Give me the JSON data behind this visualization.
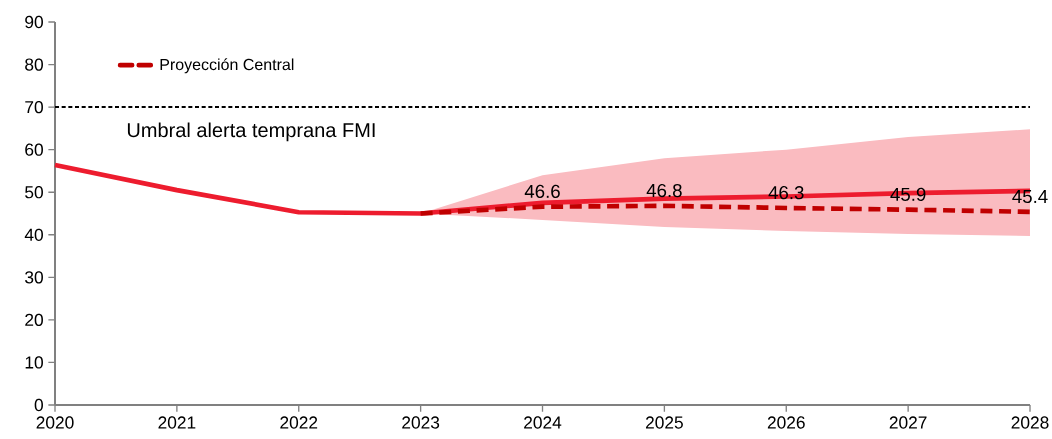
{
  "chart_data": {
    "type": "line",
    "xlim": [
      2020,
      2028
    ],
    "xticks": [
      2020,
      2021,
      2022,
      2023,
      2024,
      2025,
      2026,
      2027,
      2028
    ],
    "ylim": [
      0,
      90
    ],
    "yticks": [
      0,
      10,
      20,
      30,
      40,
      50,
      60,
      70,
      80,
      90
    ],
    "grid": false,
    "legend": "top left",
    "marker": "none",
    "ref_lines": [
      {
        "axis": "y",
        "value": 70,
        "label": "Umbral alerta temprana FMI",
        "color": "#000000",
        "line_style": "dashed"
      }
    ],
    "series": [
      {
        "color": "#ed1c2e",
        "line_style": "solid",
        "x": [
          2020,
          2021,
          2022,
          2023,
          2024,
          2025,
          2026,
          2027,
          2028
        ],
        "values": [
          56.4,
          50.5,
          45.3,
          45,
          47.5,
          48.5,
          49,
          49.8,
          50.3
        ],
        "lower": [
          null,
          null,
          null,
          45,
          43.5,
          41.8,
          40.9,
          40.2,
          39.7
        ],
        "upper": [
          null,
          null,
          null,
          45,
          54,
          58,
          60,
          63,
          64.8
        ]
      },
      {
        "name": "Proyección Central",
        "color": "#c00000",
        "line_style": "dashed",
        "x": [
          2023,
          2024,
          2025,
          2026,
          2027,
          2028
        ],
        "values": [
          45,
          46.6,
          46.8,
          46.3,
          45.9,
          45.4
        ],
        "value_labels": [
          null,
          "46.6",
          "46.8",
          "46.3",
          "45.9",
          "45.4"
        ]
      }
    ]
  }
}
